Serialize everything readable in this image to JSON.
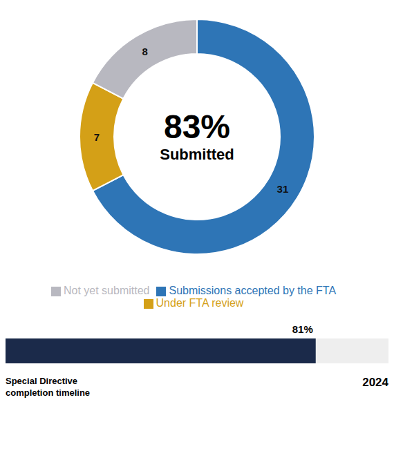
{
  "chart_data": [
    {
      "type": "pie",
      "categories": [
        "Submissions accepted by the FTA",
        "Under FTA review",
        "Not yet submitted"
      ],
      "values": [
        31,
        7,
        8
      ],
      "colors": [
        "#2E75B6",
        "#D4A017",
        "#B8B8C0"
      ],
      "data_labels": true,
      "legend": "bottom",
      "annotations": [
        "83%",
        "Submitted"
      ]
    },
    {
      "type": "bar",
      "orientation": "horizontal",
      "categories": [
        null
      ],
      "values": [
        81
      ],
      "value_labels": [
        "81%"
      ],
      "data_labels": true,
      "color": "#1B2A4A",
      "xlim": [
        0,
        100
      ],
      "tick_labels": false,
      "annotations": [
        "Special Directive\ncompletion timeline",
        "2024"
      ]
    }
  ]
}
